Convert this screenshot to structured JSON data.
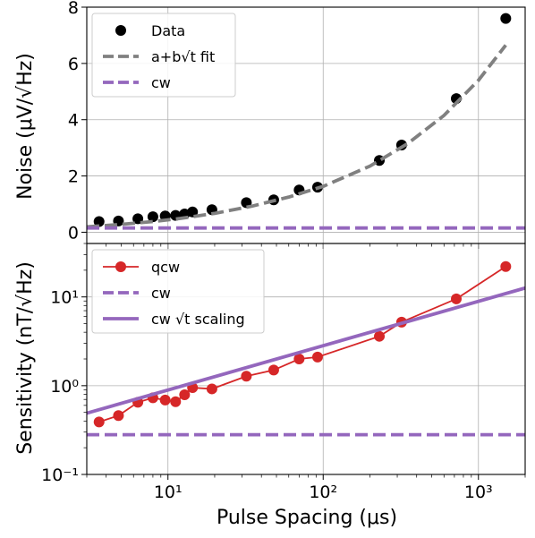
{
  "chart_data": [
    {
      "type": "scatter",
      "ylabel": "Noise (μV/√Hz)",
      "xscale": "log",
      "xlim": [
        3,
        2000
      ],
      "ylim": [
        -0.4,
        8
      ],
      "yticks": [
        0,
        2,
        4,
        6,
        8
      ],
      "ytick_labels": [
        "0",
        "2",
        "4",
        "6",
        "8"
      ],
      "grid": true,
      "legend_position": "top-left",
      "series": [
        {
          "name": "Data",
          "kind": "markers",
          "color": "#000000",
          "x": [
            3.6,
            4.8,
            6.4,
            8,
            9.6,
            11.2,
            12.8,
            14.4,
            19.2,
            32,
            48,
            70,
            92,
            230,
            320,
            720,
            1500
          ],
          "y": [
            0.38,
            0.4,
            0.48,
            0.55,
            0.58,
            0.6,
            0.65,
            0.72,
            0.8,
            1.05,
            1.15,
            1.5,
            1.6,
            2.55,
            3.1,
            4.75,
            7.6
          ]
        },
        {
          "name": "a+b√t fit",
          "kind": "dashed-line",
          "color": "#808080",
          "x": [
            3,
            5,
            8,
            12,
            20,
            35,
            60,
            100,
            200,
            350,
            600,
            1000,
            1500
          ],
          "y": [
            0.19,
            0.28,
            0.38,
            0.49,
            0.67,
            0.93,
            1.25,
            1.63,
            2.35,
            3.15,
            4.15,
            5.4,
            6.65
          ]
        },
        {
          "name": "cw",
          "kind": "dashed-line",
          "color": "#9467bd",
          "x": [
            3,
            2000
          ],
          "y": [
            0.15,
            0.15
          ]
        }
      ]
    },
    {
      "type": "line",
      "xlabel": "Pulse Spacing (μs)",
      "ylabel": "Sensitivity (nT/√Hz)",
      "xscale": "log",
      "yscale": "log",
      "xlim": [
        3,
        2000
      ],
      "ylim": [
        0.1,
        40
      ],
      "xticks": [
        10,
        100,
        1000
      ],
      "xtick_labels": [
        "10¹",
        "10²",
        "10³"
      ],
      "yticks": [
        0.1,
        1,
        10
      ],
      "ytick_labels": [
        "10⁻¹",
        "10⁰",
        "10¹"
      ],
      "grid": true,
      "legend_position": "top-left",
      "series": [
        {
          "name": "qcw",
          "kind": "line-markers",
          "color": "#d62728",
          "x": [
            3.6,
            4.8,
            6.4,
            8,
            9.6,
            11.2,
            12.8,
            14.4,
            19.2,
            32,
            48,
            70,
            92,
            230,
            320,
            720,
            1500
          ],
          "y": [
            0.39,
            0.46,
            0.65,
            0.73,
            0.69,
            0.66,
            0.79,
            0.95,
            0.92,
            1.28,
            1.5,
            2.0,
            2.1,
            3.6,
            5.2,
            9.5,
            22
          ]
        },
        {
          "name": "cw",
          "kind": "dashed-line",
          "color": "#9467bd",
          "x": [
            3,
            2000
          ],
          "y": [
            0.28,
            0.28
          ]
        },
        {
          "name": "cw √t scaling",
          "kind": "line",
          "color": "#9467bd",
          "x": [
            3,
            2000
          ],
          "y": [
            0.49,
            12.6
          ]
        }
      ]
    }
  ]
}
